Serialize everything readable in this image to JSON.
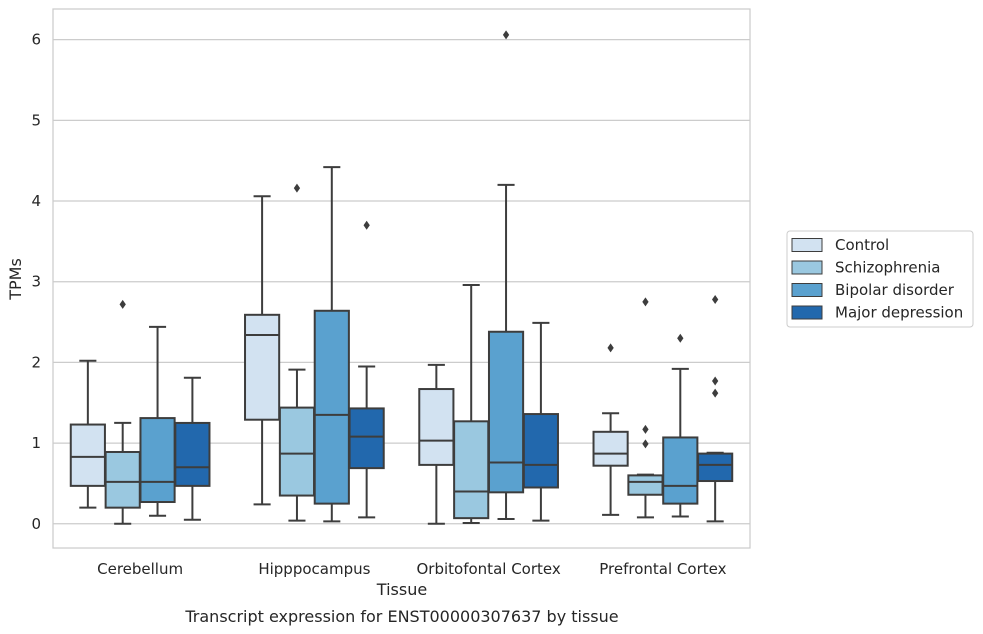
{
  "chart_data": {
    "type": "box",
    "xlabel": "Tissue",
    "ylabel": "TPMs",
    "caption": "Transcript expression for ENST00000307637 by tissue",
    "ylim": [
      -0.3,
      6.38
    ],
    "yticks": [
      "0",
      "1",
      "2",
      "3",
      "4",
      "5",
      "6"
    ],
    "grid": true,
    "legend_position": "right",
    "categories": [
      "Cerebellum",
      "Hipppocampus",
      "Orbitofontal Cortex",
      "Prefrontal Cortex"
    ],
    "series": [
      {
        "name": "Control",
        "color": "#d2e2f1",
        "boxes": [
          {
            "whisker_low": 0.2,
            "q1": 0.47,
            "median": 0.83,
            "q3": 1.23,
            "whisker_high": 2.02,
            "outliers": []
          },
          {
            "whisker_low": 0.24,
            "q1": 1.29,
            "median": 2.34,
            "q3": 2.59,
            "whisker_high": 4.06,
            "outliers": []
          },
          {
            "whisker_low": 0.0,
            "q1": 0.73,
            "median": 1.03,
            "q3": 1.67,
            "whisker_high": 1.97,
            "outliers": []
          },
          {
            "whisker_low": 0.11,
            "q1": 0.72,
            "median": 0.87,
            "q3": 1.14,
            "whisker_high": 1.37,
            "outliers": [
              2.18
            ]
          }
        ]
      },
      {
        "name": "Schizophrenia",
        "color": "#9ac8e0",
        "boxes": [
          {
            "whisker_low": 0.0,
            "q1": 0.2,
            "median": 0.52,
            "q3": 0.89,
            "whisker_high": 1.25,
            "outliers": [
              2.72
            ]
          },
          {
            "whisker_low": 0.04,
            "q1": 0.35,
            "median": 0.87,
            "q3": 1.44,
            "whisker_high": 1.91,
            "outliers": [
              4.16
            ]
          },
          {
            "whisker_low": 0.01,
            "q1": 0.07,
            "median": 0.4,
            "q3": 1.27,
            "whisker_high": 2.96,
            "outliers": []
          },
          {
            "whisker_low": 0.08,
            "q1": 0.36,
            "median": 0.52,
            "q3": 0.6,
            "whisker_high": 0.61,
            "outliers": [
              2.75,
              1.17,
              0.99
            ]
          }
        ]
      },
      {
        "name": "Bipolar disorder",
        "color": "#5aa1cf",
        "boxes": [
          {
            "whisker_low": 0.1,
            "q1": 0.27,
            "median": 0.52,
            "q3": 1.31,
            "whisker_high": 2.44,
            "outliers": []
          },
          {
            "whisker_low": 0.03,
            "q1": 0.25,
            "median": 1.35,
            "q3": 2.64,
            "whisker_high": 4.42,
            "outliers": []
          },
          {
            "whisker_low": 0.06,
            "q1": 0.39,
            "median": 0.76,
            "q3": 2.38,
            "whisker_high": 4.2,
            "outliers": [
              6.06
            ]
          },
          {
            "whisker_low": 0.09,
            "q1": 0.25,
            "median": 0.47,
            "q3": 1.07,
            "whisker_high": 1.92,
            "outliers": [
              2.3
            ]
          }
        ]
      },
      {
        "name": "Major depression",
        "color": "#2268ad",
        "boxes": [
          {
            "whisker_low": 0.05,
            "q1": 0.47,
            "median": 0.7,
            "q3": 1.25,
            "whisker_high": 1.81,
            "outliers": []
          },
          {
            "whisker_low": 0.08,
            "q1": 0.69,
            "median": 1.08,
            "q3": 1.43,
            "whisker_high": 1.95,
            "outliers": [
              3.7
            ]
          },
          {
            "whisker_low": 0.04,
            "q1": 0.45,
            "median": 0.73,
            "q3": 1.36,
            "whisker_high": 2.49,
            "outliers": []
          },
          {
            "whisker_low": 0.03,
            "q1": 0.53,
            "median": 0.73,
            "q3": 0.87,
            "whisker_high": 0.88,
            "outliers": [
              2.78,
              1.77,
              1.62
            ]
          }
        ]
      }
    ]
  }
}
